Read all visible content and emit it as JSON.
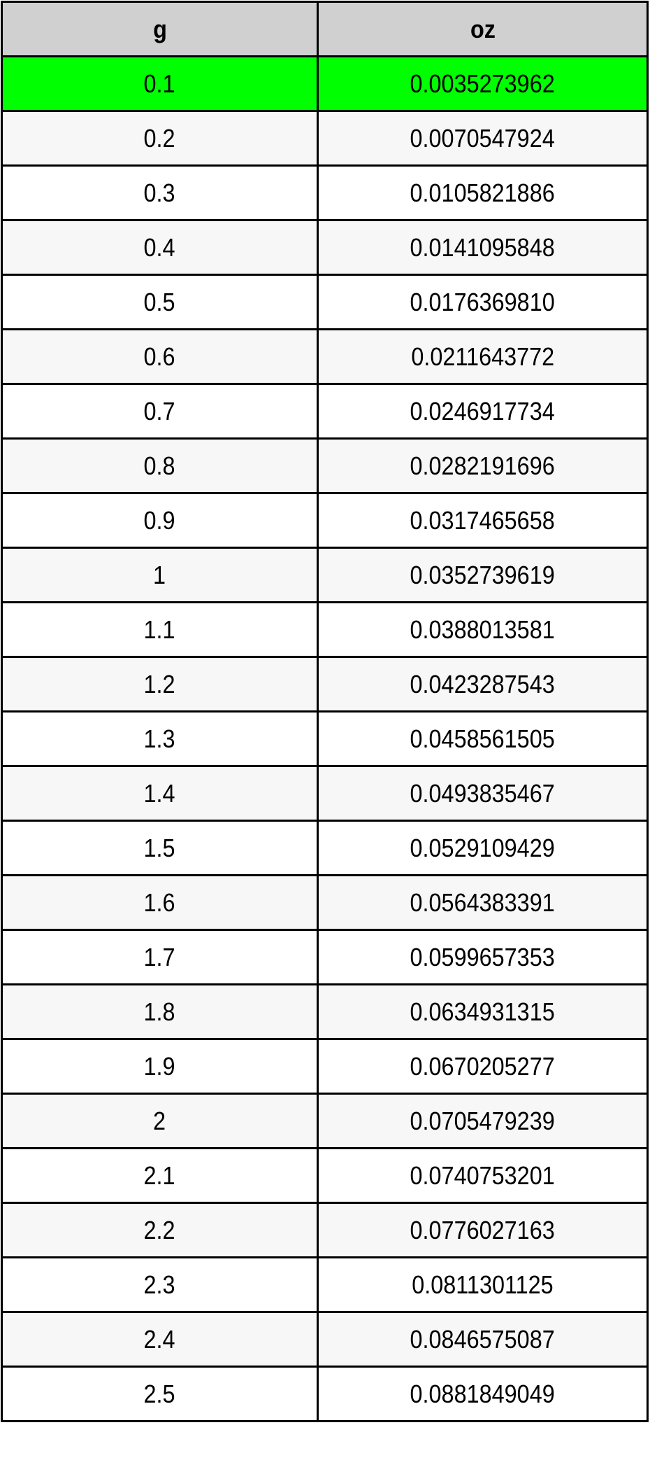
{
  "table": {
    "headers": [
      "g",
      "oz"
    ],
    "highlight_color": "#00ff00",
    "rows": [
      [
        "0.1",
        "0.0035273962"
      ],
      [
        "0.2",
        "0.0070547924"
      ],
      [
        "0.3",
        "0.0105821886"
      ],
      [
        "0.4",
        "0.0141095848"
      ],
      [
        "0.5",
        "0.0176369810"
      ],
      [
        "0.6",
        "0.0211643772"
      ],
      [
        "0.7",
        "0.0246917734"
      ],
      [
        "0.8",
        "0.0282191696"
      ],
      [
        "0.9",
        "0.0317465658"
      ],
      [
        "1",
        "0.0352739619"
      ],
      [
        "1.1",
        "0.0388013581"
      ],
      [
        "1.2",
        "0.0423287543"
      ],
      [
        "1.3",
        "0.0458561505"
      ],
      [
        "1.4",
        "0.0493835467"
      ],
      [
        "1.5",
        "0.0529109429"
      ],
      [
        "1.6",
        "0.0564383391"
      ],
      [
        "1.7",
        "0.0599657353"
      ],
      [
        "1.8",
        "0.0634931315"
      ],
      [
        "1.9",
        "0.0670205277"
      ],
      [
        "2",
        "0.0705479239"
      ],
      [
        "2.1",
        "0.0740753201"
      ],
      [
        "2.2",
        "0.0776027163"
      ],
      [
        "2.3",
        "0.0811301125"
      ],
      [
        "2.4",
        "0.0846575087"
      ],
      [
        "2.5",
        "0.0881849049"
      ]
    ]
  }
}
